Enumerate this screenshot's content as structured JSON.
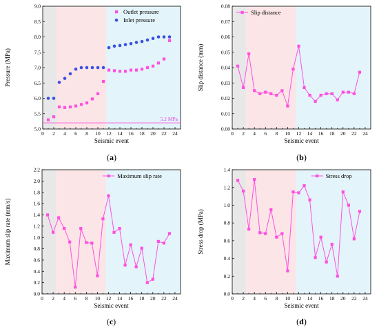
{
  "colors": {
    "gray_zone": "#e8e8e8",
    "pink_zone": "#fbe5e7",
    "cyan_zone": "#e3f4fa",
    "magenta": "#ff4fe0",
    "blue": "#3b4fe0"
  },
  "chart_data": [
    {
      "id": "a",
      "type": "scatter",
      "caption": "a",
      "xlabel": "Seismic event",
      "ylabel": "Pressure (MPa)",
      "xlim": [
        0,
        25
      ],
      "ylim": [
        5.0,
        9.0
      ],
      "xticks": [
        0,
        2,
        4,
        6,
        8,
        10,
        12,
        14,
        16,
        18,
        20,
        22,
        24
      ],
      "yticks": [
        5.0,
        5.5,
        6.0,
        6.5,
        7.0,
        7.5,
        8.0,
        8.5,
        9.0
      ],
      "ytick_decimals": 1,
      "zones": [
        [
          0,
          2.5
        ],
        [
          2.5,
          11.5
        ],
        [
          11.5,
          25
        ]
      ],
      "legend_position": "top-right",
      "reference_line": {
        "y": 5.2,
        "label": "5.2 MPa"
      },
      "series": [
        {
          "name": "Outlet pressure",
          "marker": "square",
          "color": "#ff4fe0",
          "x": [
            1,
            2,
            3,
            4,
            5,
            6,
            7,
            8,
            9,
            10,
            11,
            12,
            13,
            14,
            15,
            16,
            17,
            18,
            19,
            20,
            21,
            22,
            23
          ],
          "values": [
            5.3,
            5.4,
            5.72,
            5.7,
            5.72,
            5.75,
            5.8,
            5.85,
            5.98,
            6.15,
            6.55,
            6.92,
            6.9,
            6.88,
            6.88,
            6.92,
            6.92,
            6.95,
            7.0,
            7.05,
            7.15,
            7.28,
            7.88
          ]
        },
        {
          "name": "Inlet pressure",
          "marker": "circle",
          "color": "#3b4fe0",
          "x": [
            1,
            2,
            3,
            4,
            5,
            6,
            7,
            8,
            9,
            10,
            11,
            12,
            13,
            14,
            15,
            16,
            17,
            18,
            19,
            20,
            21,
            22,
            23
          ],
          "values": [
            6.0,
            6.0,
            6.52,
            6.65,
            6.8,
            6.95,
            7.0,
            7.0,
            7.0,
            7.0,
            7.0,
            7.65,
            7.7,
            7.72,
            7.75,
            7.78,
            7.82,
            7.85,
            7.9,
            7.95,
            8.0,
            8.0,
            8.0
          ]
        }
      ]
    },
    {
      "id": "b",
      "type": "line",
      "caption": "b",
      "xlabel": "Seismic event",
      "ylabel": "Slip distance (mm)",
      "xlim": [
        0,
        25
      ],
      "ylim": [
        0.0,
        0.08
      ],
      "xticks": [
        0,
        2,
        4,
        6,
        8,
        10,
        12,
        14,
        16,
        18,
        20,
        22,
        24
      ],
      "yticks": [
        0.0,
        0.01,
        0.02,
        0.03,
        0.04,
        0.05,
        0.06,
        0.07,
        0.08
      ],
      "ytick_decimals": 2,
      "zones": [
        [
          0,
          2.5
        ],
        [
          2.5,
          11.5
        ],
        [
          11.5,
          25
        ]
      ],
      "legend_position": "top-left",
      "series": [
        {
          "name": "Slip distance",
          "color": "#ff4fe0",
          "x": [
            1,
            2,
            3,
            4,
            5,
            6,
            7,
            8,
            9,
            10,
            11,
            12,
            13,
            14,
            15,
            16,
            17,
            18,
            19,
            20,
            21,
            22,
            23
          ],
          "values": [
            0.041,
            0.027,
            0.049,
            0.025,
            0.023,
            0.024,
            0.023,
            0.022,
            0.025,
            0.015,
            0.039,
            0.054,
            0.027,
            0.022,
            0.018,
            0.022,
            0.023,
            0.023,
            0.019,
            0.024,
            0.024,
            0.023,
            0.037
          ]
        }
      ]
    },
    {
      "id": "c",
      "type": "line",
      "caption": "c",
      "xlabel": "Seismic event",
      "ylabel": "Maximum slip rate (mm/s)",
      "xlim": [
        0,
        25
      ],
      "ylim": [
        0.0,
        2.2
      ],
      "xticks": [
        0,
        2,
        4,
        6,
        8,
        10,
        12,
        14,
        16,
        18,
        20,
        22,
        24
      ],
      "yticks": [
        0.0,
        0.2,
        0.4,
        0.6,
        0.8,
        1.0,
        1.2,
        1.4,
        1.6,
        1.8,
        2.0,
        2.2
      ],
      "ytick_decimals": 1,
      "zones": [
        [
          0,
          2.5
        ],
        [
          2.5,
          11.5
        ],
        [
          11.5,
          25
        ]
      ],
      "legend_position": "top-right",
      "series": [
        {
          "name": "Maximum slip rate",
          "color": "#ff4fe0",
          "x": [
            1,
            2,
            3,
            4,
            5,
            6,
            7,
            8,
            9,
            10,
            11,
            12,
            13,
            14,
            15,
            16,
            17,
            18,
            19,
            20,
            21,
            22,
            23
          ],
          "values": [
            1.4,
            1.09,
            1.35,
            1.16,
            0.92,
            0.12,
            1.16,
            0.91,
            0.9,
            0.32,
            1.33,
            1.74,
            1.09,
            1.16,
            0.51,
            0.87,
            0.48,
            0.81,
            0.2,
            0.26,
            0.93,
            0.9,
            1.07
          ]
        }
      ]
    },
    {
      "id": "d",
      "type": "line",
      "caption": "d",
      "xlabel": "Seismic event",
      "ylabel": "Stress drop (MPa)",
      "xlim": [
        0,
        25
      ],
      "ylim": [
        0.0,
        1.4
      ],
      "xticks": [
        0,
        2,
        4,
        6,
        8,
        10,
        12,
        14,
        16,
        18,
        20,
        22,
        24
      ],
      "yticks": [
        0.0,
        0.2,
        0.4,
        0.6,
        0.8,
        1.0,
        1.2,
        1.4
      ],
      "ytick_decimals": 1,
      "zones": [
        [
          0,
          2.5
        ],
        [
          2.5,
          11.5
        ],
        [
          11.5,
          25
        ]
      ],
      "legend_position": "top-right",
      "series": [
        {
          "name": "Stress drop",
          "color": "#ff4fe0",
          "x": [
            1,
            2,
            3,
            4,
            5,
            6,
            7,
            8,
            9,
            10,
            11,
            12,
            13,
            14,
            15,
            16,
            17,
            18,
            19,
            20,
            21,
            22,
            23
          ],
          "values": [
            1.28,
            1.16,
            0.73,
            1.29,
            0.69,
            0.68,
            0.95,
            0.64,
            0.68,
            0.26,
            1.15,
            1.14,
            1.22,
            1.06,
            0.41,
            0.64,
            0.36,
            0.56,
            0.2,
            1.15,
            1.0,
            0.62,
            0.93
          ]
        }
      ]
    }
  ]
}
